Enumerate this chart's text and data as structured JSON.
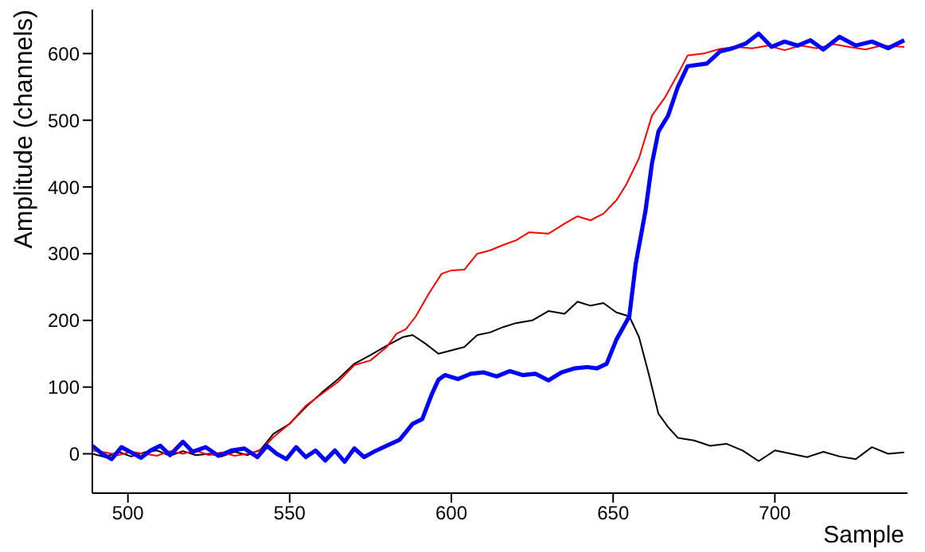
{
  "chart_data": {
    "type": "line",
    "xlabel": "Sample",
    "ylabel": "Amplitude (channels)",
    "xlim": [
      489,
      741
    ],
    "ylim": [
      -59,
      666
    ],
    "xticks": [
      500,
      550,
      600,
      650,
      700
    ],
    "yticks": [
      0,
      100,
      200,
      300,
      400,
      500,
      600
    ],
    "marker": "none",
    "line_style": "solid",
    "series": [
      {
        "color": "#000000",
        "x": [
          489,
          493,
          497,
          501,
          505,
          509,
          513,
          517,
          521,
          525,
          529,
          533,
          537,
          541,
          545,
          550,
          555,
          560,
          565,
          570,
          575,
          580,
          585,
          588,
          592,
          596,
          600,
          604,
          608,
          612,
          616,
          620,
          625,
          630,
          635,
          639,
          643,
          647,
          651,
          655,
          658,
          661,
          664,
          667,
          670,
          675,
          680,
          685,
          690,
          695,
          700,
          705,
          710,
          715,
          720,
          725,
          730,
          735,
          740
        ],
        "values": [
          0,
          -5,
          3,
          -4,
          2,
          5,
          -3,
          4,
          -2,
          0,
          -4,
          3,
          -2,
          6,
          30,
          45,
          70,
          92,
          112,
          135,
          148,
          162,
          175,
          178,
          165,
          150,
          155,
          160,
          178,
          182,
          190,
          196,
          200,
          214,
          210,
          228,
          222,
          226,
          212,
          206,
          175,
          120,
          60,
          40,
          24,
          20,
          12,
          15,
          5,
          -11,
          5,
          0,
          -5,
          3,
          -4,
          -8,
          10,
          0,
          2
        ]
      },
      {
        "color": "#ff0000",
        "x": [
          489,
          493,
          497,
          501,
          505,
          509,
          513,
          517,
          521,
          525,
          529,
          533,
          537,
          541,
          545,
          550,
          555,
          560,
          565,
          570,
          575,
          580,
          583,
          586,
          589,
          593,
          597,
          600,
          604,
          608,
          612,
          616,
          620,
          624,
          630,
          635,
          639,
          643,
          647,
          651,
          654,
          658,
          662,
          666,
          670,
          673,
          678,
          683,
          688,
          693,
          698,
          703,
          708,
          713,
          718,
          723,
          728,
          733,
          740
        ],
        "values": [
          5,
          2,
          -2,
          3,
          0,
          -3,
          4,
          0,
          5,
          -2,
          2,
          -3,
          0,
          5,
          25,
          45,
          72,
          90,
          108,
          133,
          140,
          160,
          180,
          187,
          206,
          240,
          270,
          275,
          276,
          300,
          305,
          313,
          320,
          332,
          330,
          345,
          356,
          350,
          360,
          380,
          403,
          443,
          507,
          534,
          569,
          597,
          600,
          607,
          610,
          608,
          612,
          605,
          612,
          608,
          614,
          610,
          606,
          612,
          610
        ]
      },
      {
        "color": "#0000ff",
        "x": [
          489,
          492,
          495,
          498,
          501,
          504,
          507,
          510,
          513,
          517,
          520,
          524,
          528,
          532,
          536,
          540,
          543,
          546,
          549,
          552,
          555,
          558,
          561,
          564,
          567,
          570,
          573,
          576,
          580,
          584,
          588,
          591,
          594,
          596,
          598,
          602,
          606,
          610,
          614,
          618,
          622,
          626,
          630,
          634,
          638,
          642,
          645,
          648,
          651,
          655,
          657,
          660,
          662,
          664,
          667,
          670,
          673,
          679,
          683,
          687,
          691,
          695,
          699,
          703,
          707,
          711,
          715,
          720,
          725,
          730,
          735,
          740
        ],
        "values": [
          12,
          0,
          -8,
          10,
          2,
          -6,
          5,
          12,
          -2,
          18,
          3,
          10,
          -3,
          5,
          8,
          -5,
          12,
          0,
          -8,
          10,
          -5,
          5,
          -10,
          5,
          -12,
          8,
          -5,
          3,
          12,
          21,
          45,
          52,
          90,
          111,
          118,
          112,
          120,
          122,
          116,
          124,
          118,
          120,
          110,
          122,
          128,
          130,
          128,
          135,
          171,
          206,
          285,
          364,
          435,
          483,
          507,
          550,
          581,
          585,
          603,
          608,
          615,
          630,
          610,
          618,
          612,
          620,
          606,
          625,
          612,
          618,
          608,
          620
        ]
      }
    ]
  }
}
